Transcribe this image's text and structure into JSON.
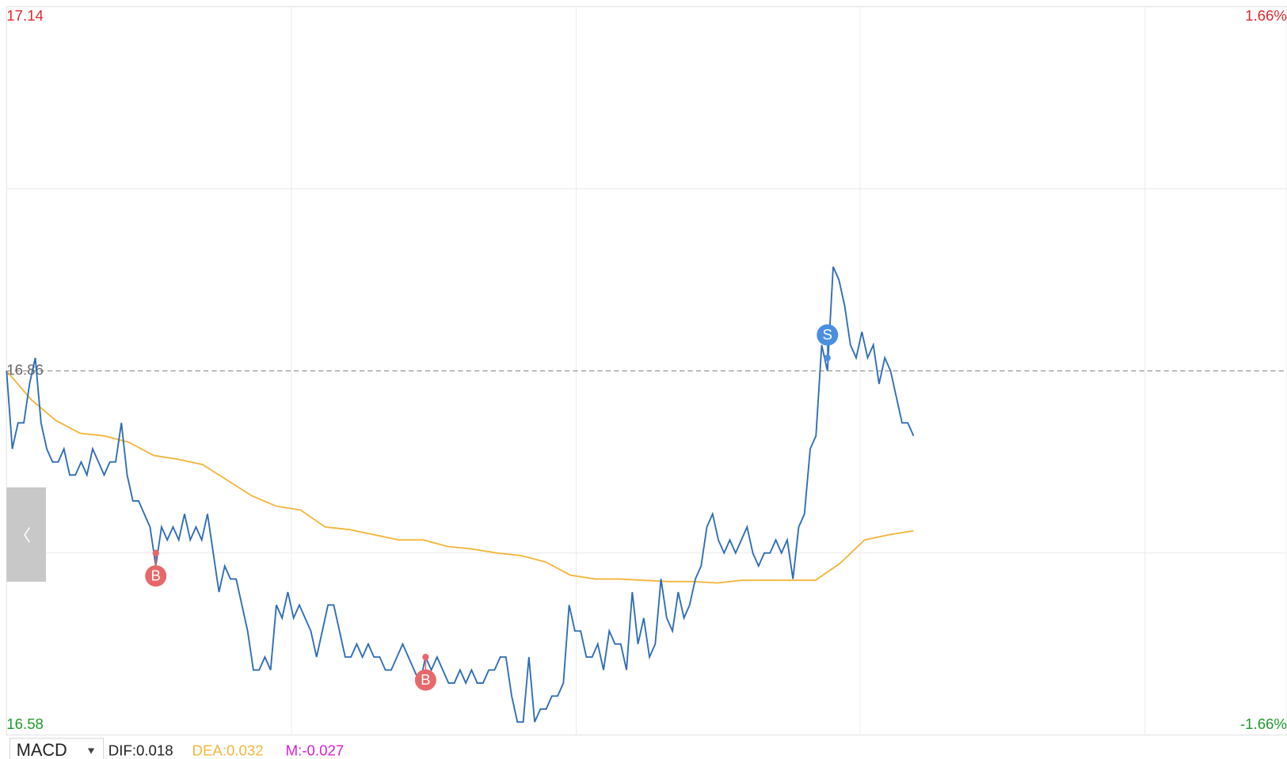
{
  "chart_data": {
    "type": "line",
    "ylim": [
      16.58,
      17.14
    ],
    "yticks": [
      17.14,
      16.58
    ],
    "ytick_colors": [
      "#e0282e",
      "#1f9a2a"
    ],
    "right_labels": [
      "1.66%",
      "-1.66%"
    ],
    "reference": 16.86,
    "grid": true,
    "series": [
      {
        "name": "price",
        "color": "#2e6db5",
        "values": [
          16.86,
          16.8,
          16.82,
          16.82,
          16.85,
          16.87,
          16.82,
          16.8,
          16.79,
          16.79,
          16.8,
          16.78,
          16.78,
          16.79,
          16.78,
          16.8,
          16.79,
          16.78,
          16.79,
          16.79,
          16.82,
          16.78,
          16.76,
          16.76,
          16.75,
          16.74,
          16.71,
          16.74,
          16.73,
          16.74,
          16.73,
          16.75,
          16.73,
          16.74,
          16.73,
          16.75,
          16.72,
          16.69,
          16.71,
          16.7,
          16.7,
          16.68,
          16.66,
          16.63,
          16.63,
          16.64,
          16.63,
          16.68,
          16.67,
          16.69,
          16.67,
          16.68,
          16.67,
          16.66,
          16.64,
          16.66,
          16.68,
          16.68,
          16.66,
          16.64,
          16.64,
          16.65,
          16.64,
          16.65,
          16.64,
          16.64,
          16.63,
          16.63,
          16.64,
          16.65,
          16.64,
          16.63,
          16.62,
          16.64,
          16.63,
          16.64,
          16.63,
          16.62,
          16.62,
          16.63,
          16.62,
          16.63,
          16.62,
          16.62,
          16.63,
          16.63,
          16.64,
          16.64,
          16.61,
          16.59,
          16.59,
          16.64,
          16.59,
          16.6,
          16.6,
          16.61,
          16.61,
          16.62,
          16.68,
          16.66,
          16.66,
          16.64,
          16.64,
          16.65,
          16.63,
          16.66,
          16.65,
          16.65,
          16.63,
          16.69,
          16.65,
          16.67,
          16.64,
          16.65,
          16.7,
          16.67,
          16.66,
          16.69,
          16.67,
          16.68,
          16.7,
          16.71,
          16.74,
          16.75,
          16.73,
          16.72,
          16.73,
          16.72,
          16.73,
          16.74,
          16.72,
          16.71,
          16.72,
          16.72,
          16.73,
          16.72,
          16.73,
          16.7,
          16.74,
          16.75,
          16.8,
          16.81,
          16.88,
          16.86,
          16.94,
          16.93,
          16.91,
          16.88,
          16.87,
          16.89,
          16.87,
          16.88,
          16.85,
          16.87,
          16.86,
          16.84,
          16.82,
          16.82,
          16.81
        ]
      },
      {
        "name": "average",
        "color": "#f3b63c",
        "values": [
          16.86,
          16.838,
          16.822,
          16.812,
          16.81,
          16.805,
          16.795,
          16.792,
          16.788,
          16.776,
          16.764,
          16.756,
          16.753,
          16.74,
          16.738,
          16.734,
          16.73,
          16.73,
          16.725,
          16.723,
          16.72,
          16.718,
          16.713,
          16.703,
          16.7,
          16.7,
          16.699,
          16.698,
          16.698,
          16.697,
          16.699,
          16.699,
          16.699,
          16.699,
          16.712,
          16.73,
          16.734,
          16.737
        ]
      }
    ],
    "signals": [
      {
        "label": "B",
        "index": 26,
        "value": 16.72,
        "color": "#e8686a"
      },
      {
        "label": "B",
        "index": 73,
        "value": 16.64,
        "color": "#e8686a"
      },
      {
        "label": "S",
        "index": 143,
        "value": 16.87,
        "color": "#4a8fe0"
      }
    ]
  },
  "indicator_bar": {
    "selector": "MACD",
    "dif": "DIF:0.018",
    "dea": "DEA:0.032",
    "m": "M:-0.027"
  }
}
